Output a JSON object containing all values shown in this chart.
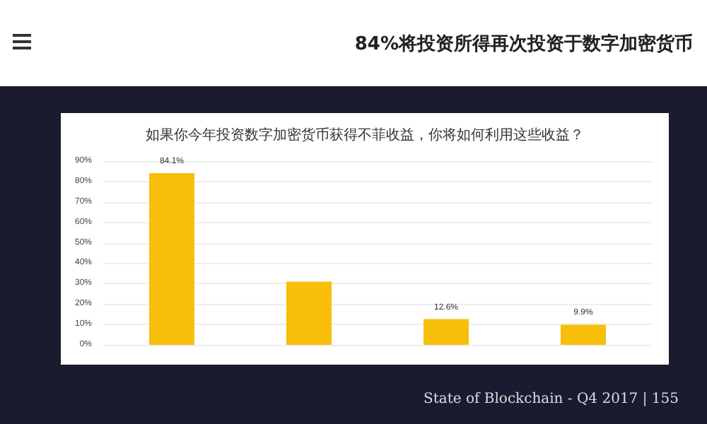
{
  "chart_data": {
    "type": "bar",
    "title": "84%将投资所得再次投资于数字加密货币",
    "subtitle": "如果你今年投资数字加密货币获得不菲收益，你将如何利用这些收益？",
    "categories": [
      null,
      null,
      null,
      null
    ],
    "values": [
      84.1,
      31,
      12.6,
      9.9
    ],
    "value_labels": [
      "84.1%",
      null,
      "12.6%",
      "9.9%"
    ],
    "color": "#f7bf0a",
    "ylim": [
      0,
      90
    ],
    "yticks": [
      {
        "value": 0,
        "label": "0%"
      },
      {
        "value": 10,
        "label": "10%"
      },
      {
        "value": 20,
        "label": "20%"
      },
      {
        "value": 30,
        "label": "30%"
      },
      {
        "value": 40,
        "label": "40%"
      },
      {
        "value": 50,
        "label": "50%"
      },
      {
        "value": 60,
        "label": "60%"
      },
      {
        "value": 70,
        "label": "70%"
      },
      {
        "value": 80,
        "label": "80%"
      },
      {
        "value": 90,
        "label": "90%"
      }
    ],
    "grid": "y",
    "annotations": [
      "State of Blockchain - Q4 2017 | 155"
    ]
  }
}
